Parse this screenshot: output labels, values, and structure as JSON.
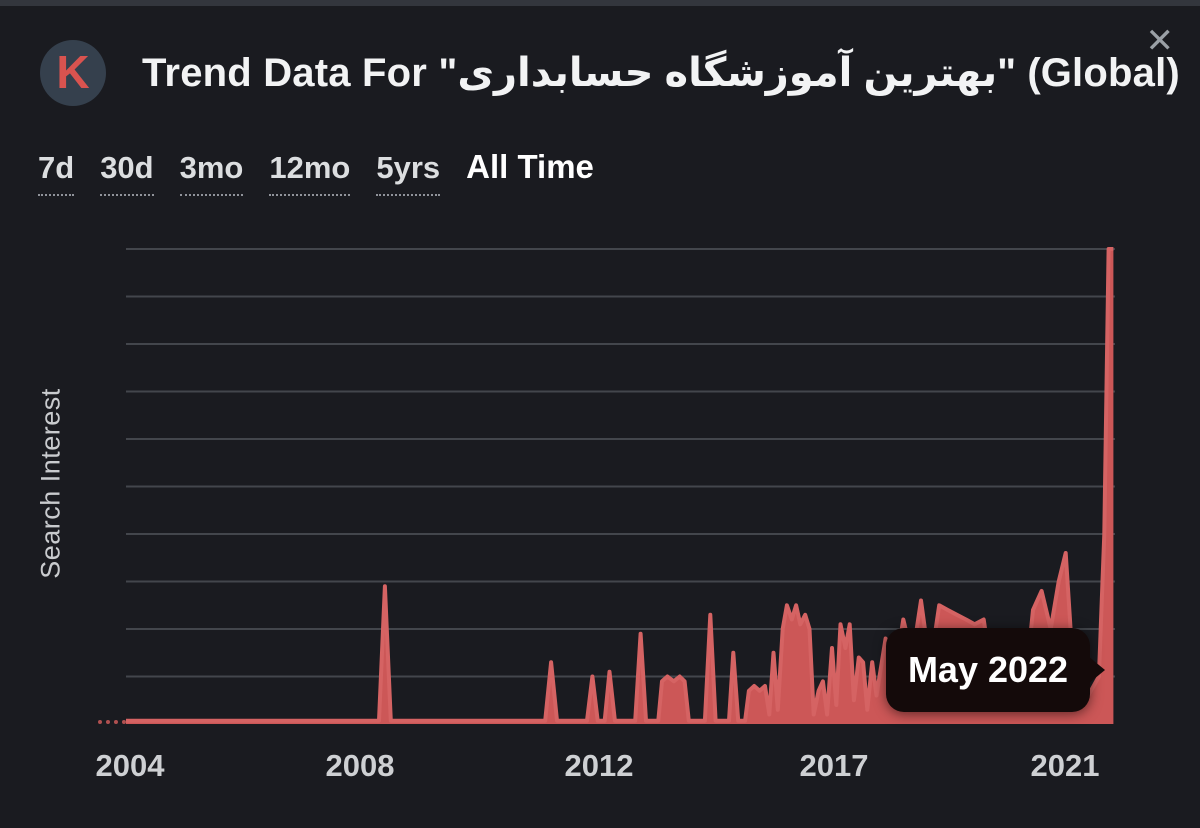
{
  "header": {
    "logo_letter": "K",
    "title_prefix": "Trend Data For ",
    "keyword_quoted": "\"بهترین آموزشگاه حسابداری\"",
    "title_suffix": " (Global)",
    "close_icon": "✕"
  },
  "time_ranges": [
    {
      "label": "7d",
      "active": false
    },
    {
      "label": "30d",
      "active": false
    },
    {
      "label": "3mo",
      "active": false
    },
    {
      "label": "12mo",
      "active": false
    },
    {
      "label": "5yrs",
      "active": false
    },
    {
      "label": "All Time",
      "active": true
    }
  ],
  "chart_data": {
    "type": "area",
    "title": "Trend Data For \"بهترین آموزشگاه حسابداری\" (Global)",
    "xlabel": "",
    "ylabel": "Search Interest",
    "ylim": [
      0,
      100
    ],
    "xlim": [
      2004.0,
      2022.45
    ],
    "grid": "horizontal, every 10 units, no y tick labels",
    "legend": "none",
    "series_name": "Search Interest",
    "series_color": "#cc5757",
    "x_ticks": [
      {
        "label": "2004",
        "x": 2004.07
      },
      {
        "label": "2008",
        "x": 2008.37
      },
      {
        "label": "2012",
        "x": 2012.82
      },
      {
        "label": "2017",
        "x": 2017.2
      },
      {
        "label": "2021",
        "x": 2021.51
      }
    ],
    "points": {
      "x": [
        2004.0,
        2008.72,
        2008.83,
        2008.94,
        2011.82,
        2011.93,
        2012.04,
        2012.6,
        2012.7,
        2012.8,
        2012.93,
        2013.02,
        2013.12,
        2013.5,
        2013.6,
        2013.7,
        2013.93,
        2014.0,
        2014.1,
        2014.22,
        2014.33,
        2014.42,
        2014.5,
        2014.8,
        2014.9,
        2015.0,
        2015.25,
        2015.33,
        2015.42,
        2015.55,
        2015.62,
        2015.72,
        2015.82,
        2015.92,
        2016.0,
        2016.08,
        2016.16,
        2016.25,
        2016.33,
        2016.42,
        2016.5,
        2016.58,
        2016.67,
        2016.75,
        2016.83,
        2016.92,
        2017.0,
        2017.08,
        2017.17,
        2017.25,
        2017.33,
        2017.42,
        2017.5,
        2017.58,
        2017.67,
        2017.75,
        2017.83,
        2017.92,
        2018.0,
        2018.17,
        2018.33,
        2018.5,
        2018.67,
        2018.83,
        2019.0,
        2019.17,
        2019.33,
        2019.5,
        2019.67,
        2019.83,
        2020.0,
        2020.17,
        2020.33,
        2020.5,
        2020.67,
        2020.83,
        2020.92,
        2021.08,
        2021.25,
        2021.4,
        2021.53,
        2021.65,
        2021.8,
        2021.88,
        2021.95,
        2022.05,
        2022.15,
        2022.25,
        2022.33,
        2022.42
      ],
      "y": [
        0.7,
        0.7,
        29,
        0.7,
        0.7,
        13,
        0.7,
        0.7,
        10,
        0.7,
        0.7,
        11,
        0.7,
        0.7,
        19,
        0.7,
        0.7,
        9,
        10,
        9,
        10,
        9,
        0.7,
        0.7,
        23,
        0.7,
        0.7,
        15,
        0.7,
        0.7,
        7,
        8,
        7,
        8,
        2,
        15,
        3,
        20,
        25,
        22,
        25,
        21,
        23,
        20,
        2,
        7,
        9,
        2,
        16,
        4,
        21,
        16,
        21,
        5,
        14,
        13,
        3,
        13,
        6,
        18,
        10,
        22,
        14,
        26,
        12,
        25,
        24,
        23,
        22,
        21,
        22,
        9,
        15,
        12,
        17,
        14,
        24,
        28,
        20,
        30,
        36,
        15,
        18,
        16,
        6,
        8,
        10,
        40,
        100,
        100
      ]
    },
    "tooltip": {
      "label": "May 2022",
      "x": 2022.42,
      "value": 100
    }
  },
  "colors": {
    "background": "#1a1b20",
    "top_strip": "#33363d",
    "gridline": "#43464c",
    "series_fill": "#cc5757",
    "series_stroke": "#d56363",
    "tooltip_bg": "#140a0a",
    "logo_circle": "#35404d",
    "logo_letter": "#d9534f"
  }
}
